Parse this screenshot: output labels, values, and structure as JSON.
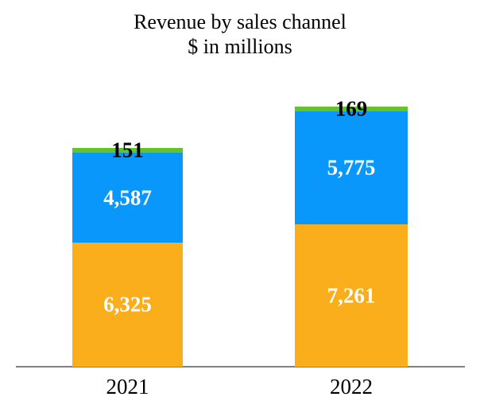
{
  "chart_data": {
    "type": "bar",
    "stacked": true,
    "title": "Revenue by sales channel",
    "subtitle": "$ in millions",
    "categories": [
      "2021",
      "2022"
    ],
    "series": [
      {
        "color": "#FAAE1B",
        "label_color": "#FFFFFF",
        "values": [
          6325,
          7261
        ],
        "labels": [
          "6,325",
          "7,261"
        ]
      },
      {
        "color": "#0997FC",
        "label_color": "#FFFFFF",
        "values": [
          4587,
          5775
        ],
        "labels": [
          "4,587",
          "5,775"
        ]
      },
      {
        "color": "#62C42A",
        "label_color": "#000000",
        "values": [
          151,
          169
        ],
        "labels": [
          "151",
          "169"
        ]
      }
    ],
    "axis_line_color": "#808080",
    "y_axis_visible": false,
    "grid": false,
    "legend": "none",
    "baseline_value": 0
  }
}
